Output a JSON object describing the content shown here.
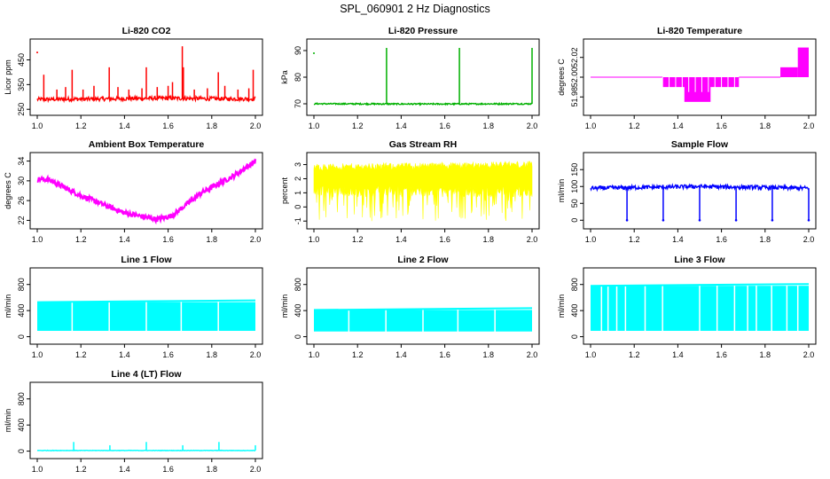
{
  "title": "SPL_060901  2 Hz Diagnostics",
  "chart_data": [
    {
      "type": "line",
      "title": "Li-820 CO2",
      "ylabel": "Licor ppm",
      "color": "#ff0000",
      "xlim": [
        1.0,
        2.0
      ],
      "ylim": [
        240,
        520
      ],
      "xticks": [
        1.0,
        1.2,
        1.4,
        1.6,
        1.8,
        2.0
      ],
      "xtick_labels": [
        "1.0",
        "1.2",
        "1.4",
        "1.6",
        "1.8",
        "2.0"
      ],
      "yticks": [
        250,
        350,
        450
      ],
      "ytick_labels": [
        "250",
        "350",
        "450"
      ],
      "series": [
        {
          "name": "CO2",
          "base": [
            [
              1.0,
              290
            ],
            [
              1.3,
              292
            ],
            [
              1.6,
              295
            ],
            [
              1.8,
              293
            ],
            [
              2.0,
              292
            ]
          ],
          "noise": 8,
          "spikes": [
            [
              1.03,
              390
            ],
            [
              1.09,
              330
            ],
            [
              1.13,
              340
            ],
            [
              1.16,
              410
            ],
            [
              1.21,
              330
            ],
            [
              1.26,
              345
            ],
            [
              1.33,
              420
            ],
            [
              1.37,
              340
            ],
            [
              1.42,
              330
            ],
            [
              1.48,
              335
            ],
            [
              1.5,
              420
            ],
            [
              1.55,
              340
            ],
            [
              1.6,
              345
            ],
            [
              1.62,
              360
            ],
            [
              1.665,
              505
            ],
            [
              1.67,
              420
            ],
            [
              1.72,
              330
            ],
            [
              1.78,
              335
            ],
            [
              1.83,
              400
            ],
            [
              1.86,
              345
            ],
            [
              1.92,
              330
            ],
            [
              1.97,
              335
            ],
            [
              1.99,
              410
            ]
          ],
          "isolated": [
            [
              1.0,
              480
            ]
          ]
        }
      ]
    },
    {
      "type": "line",
      "title": "Li-820 Pressure",
      "ylabel": "kPa",
      "color": "#00b000",
      "xlim": [
        1.0,
        2.0
      ],
      "ylim": [
        67,
        93
      ],
      "xticks": [
        1.0,
        1.2,
        1.4,
        1.6,
        1.8,
        2.0
      ],
      "xtick_labels": [
        "1.0",
        "1.2",
        "1.4",
        "1.6",
        "1.8",
        "2.0"
      ],
      "yticks": [
        70,
        80,
        90
      ],
      "ytick_labels": [
        "70",
        "80",
        "90"
      ],
      "series": [
        {
          "name": "Pressure",
          "base": [
            [
              1.0,
              70.0
            ],
            [
              1.5,
              69.9
            ],
            [
              2.0,
              70.0
            ]
          ],
          "noise": 0.25,
          "spikes": [
            [
              1.333,
              91
            ],
            [
              1.667,
              91
            ],
            [
              2.0,
              91
            ]
          ],
          "isolated": [
            [
              1.0,
              89
            ]
          ]
        }
      ]
    },
    {
      "type": "line",
      "title": "Li-820 Temperature",
      "ylabel": "degrees C",
      "color": "#ff00ff",
      "xlim": [
        1.0,
        2.0
      ],
      "ylim": [
        51.965,
        52.035
      ],
      "xticks": [
        1.0,
        1.2,
        1.4,
        1.6,
        1.8,
        2.0
      ],
      "xtick_labels": [
        "1.0",
        "1.2",
        "1.4",
        "1.6",
        "1.8",
        "2.0"
      ],
      "yticks": [
        51.98,
        52.0,
        52.02
      ],
      "ytick_labels": [
        "51.98",
        "52.00",
        "52.02"
      ],
      "series": [
        {
          "name": "Temperature",
          "base": [
            [
              1.0,
              52.0
            ],
            [
              2.0,
              52.0
            ]
          ],
          "levels": [
            52.0,
            51.99,
            51.975,
            52.01,
            52.03
          ],
          "segments": [
            [
              1.0,
              1.33,
              52.0
            ],
            [
              1.33,
              1.68,
              51.99
            ],
            [
              1.43,
              1.55,
              51.975
            ],
            [
              1.68,
              1.87,
              52.0
            ],
            [
              1.87,
              1.95,
              52.01
            ],
            [
              1.95,
              2.0,
              52.03
            ]
          ]
        }
      ]
    },
    {
      "type": "line",
      "title": "Ambient Box Temperature",
      "ylabel": "degrees C",
      "color": "#ff00ff",
      "xlim": [
        1.0,
        2.0
      ],
      "ylim": [
        21,
        35
      ],
      "xticks": [
        1.0,
        1.2,
        1.4,
        1.6,
        1.8,
        2.0
      ],
      "xtick_labels": [
        "1.0",
        "1.2",
        "1.4",
        "1.6",
        "1.8",
        "2.0"
      ],
      "yticks": [
        22,
        26,
        30,
        34
      ],
      "ytick_labels": [
        "22",
        "26",
        "30",
        "34"
      ],
      "series": [
        {
          "name": "Ambient",
          "base": [
            [
              1.0,
              30.3
            ],
            [
              1.05,
              30.3
            ],
            [
              1.2,
              27.0
            ],
            [
              1.4,
              23.5
            ],
            [
              1.55,
              22.2
            ],
            [
              1.62,
              23.0
            ],
            [
              1.75,
              27.5
            ],
            [
              1.9,
              31.0
            ],
            [
              2.0,
              34.0
            ]
          ],
          "noise": 0.5
        }
      ]
    },
    {
      "type": "line",
      "title": "Gas Stream RH",
      "ylabel": "percent",
      "color": "#ffff00",
      "xlim": [
        1.0,
        2.0
      ],
      "ylim": [
        -1.3,
        3.6
      ],
      "xticks": [
        1.0,
        1.2,
        1.4,
        1.6,
        1.8,
        2.0
      ],
      "xtick_labels": [
        "1.0",
        "1.2",
        "1.4",
        "1.6",
        "1.8",
        "2.0"
      ],
      "yticks": [
        -1,
        0,
        1,
        2,
        3
      ],
      "ytick_labels": [
        "-1",
        "0",
        "1",
        "2",
        "3"
      ],
      "series": [
        {
          "name": "RH",
          "base": [
            [
              1.0,
              2.8
            ],
            [
              1.5,
              2.9
            ],
            [
              2.0,
              3.0
            ]
          ],
          "band_low": 1.5,
          "dip_low": -1.0
        }
      ]
    },
    {
      "type": "line",
      "title": "Sample Flow",
      "ylabel": "ml/min",
      "color": "#0000ff",
      "xlim": [
        1.0,
        2.0
      ],
      "ylim": [
        -15,
        190
      ],
      "xticks": [
        1.0,
        1.2,
        1.4,
        1.6,
        1.8,
        2.0
      ],
      "xtick_labels": [
        "1.0",
        "1.2",
        "1.4",
        "1.6",
        "1.8",
        "2.0"
      ],
      "yticks": [
        0,
        50,
        100,
        150
      ],
      "ytick_labels": [
        "0",
        "50",
        "100",
        "150"
      ],
      "series": [
        {
          "name": "Sample",
          "base": [
            [
              1.0,
              95
            ],
            [
              1.5,
              100
            ],
            [
              2.0,
              95
            ]
          ],
          "noise": 6,
          "drops": [
            1.167,
            1.333,
            1.5,
            1.667,
            1.833,
            2.0
          ]
        }
      ]
    },
    {
      "type": "line",
      "title": "Line 1 Flow",
      "ylabel": "ml/min",
      "color": "#00ffff",
      "xlim": [
        1.0,
        2.0
      ],
      "ylim": [
        -60,
        1000
      ],
      "xticks": [
        1.0,
        1.2,
        1.4,
        1.6,
        1.8,
        2.0
      ],
      "xtick_labels": [
        "1.0",
        "1.2",
        "1.4",
        "1.6",
        "1.8",
        "2.0"
      ],
      "yticks": [
        0,
        400,
        800
      ],
      "ytick_labels": [
        "0",
        "400",
        "800"
      ],
      "series": [
        {
          "name": "Line1",
          "band_low": 90,
          "band_high": 530,
          "gaps": [
            1.16,
            1.33,
            1.5,
            1.66,
            1.83
          ]
        }
      ]
    },
    {
      "type": "line",
      "title": "Line 2 Flow",
      "ylabel": "ml/min",
      "color": "#00ffff",
      "xlim": [
        1.0,
        2.0
      ],
      "ylim": [
        -60,
        1000
      ],
      "xticks": [
        1.0,
        1.2,
        1.4,
        1.6,
        1.8,
        2.0
      ],
      "xtick_labels": [
        "1.0",
        "1.2",
        "1.4",
        "1.6",
        "1.8",
        "2.0"
      ],
      "yticks": [
        0,
        400,
        800
      ],
      "ytick_labels": [
        "0",
        "400",
        "800"
      ],
      "series": [
        {
          "name": "Line2",
          "band_low": 80,
          "band_high": 410,
          "gaps": [
            1.16,
            1.33,
            1.5,
            1.66,
            1.83
          ]
        }
      ]
    },
    {
      "type": "line",
      "title": "Line 3 Flow",
      "ylabel": "ml/min",
      "color": "#00ffff",
      "xlim": [
        1.0,
        2.0
      ],
      "ylim": [
        -60,
        1000
      ],
      "xticks": [
        1.0,
        1.2,
        1.4,
        1.6,
        1.8,
        2.0
      ],
      "xtick_labels": [
        "1.0",
        "1.2",
        "1.4",
        "1.6",
        "1.8",
        "2.0"
      ],
      "yticks": [
        0,
        400,
        800
      ],
      "ytick_labels": [
        "0",
        "400",
        "800"
      ],
      "series": [
        {
          "name": "Line3",
          "band_low": 90,
          "band_high": 780,
          "gaps": [
            1.05,
            1.08,
            1.12,
            1.16,
            1.25,
            1.33,
            1.5,
            1.58,
            1.66,
            1.72,
            1.76,
            1.83,
            1.9,
            1.95
          ]
        }
      ]
    },
    {
      "type": "line",
      "title": "Line 4 (LT) Flow",
      "ylabel": "ml/min",
      "color": "#00ffff",
      "xlim": [
        1.0,
        2.0
      ],
      "ylim": [
        -60,
        1000
      ],
      "xticks": [
        1.0,
        1.2,
        1.4,
        1.6,
        1.8,
        2.0
      ],
      "xtick_labels": [
        "1.0",
        "1.2",
        "1.4",
        "1.6",
        "1.8",
        "2.0"
      ],
      "yticks": [
        0,
        400,
        800
      ],
      "ytick_labels": [
        "0",
        "400",
        "800"
      ],
      "series": [
        {
          "name": "Line4",
          "base": [
            [
              1.0,
              10
            ],
            [
              2.0,
              10
            ]
          ],
          "noise": 3,
          "spikes": [
            [
              1.167,
              140
            ],
            [
              1.333,
              90
            ],
            [
              1.5,
              140
            ],
            [
              1.667,
              90
            ],
            [
              1.833,
              140
            ],
            [
              2.0,
              90
            ]
          ]
        }
      ]
    }
  ]
}
